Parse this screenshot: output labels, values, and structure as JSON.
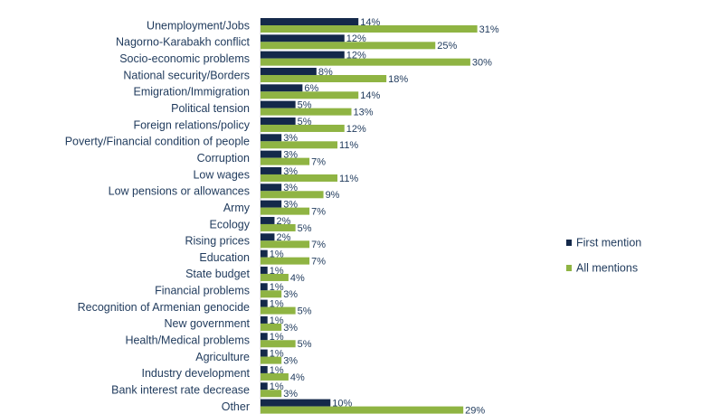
{
  "chart_data": {
    "type": "bar",
    "orientation": "horizontal",
    "categories": [
      "Unemployment/Jobs",
      "Nagorno-Karabakh conflict",
      "Socio-economic problems",
      "National security/Borders",
      "Emigration/Immigration",
      "Political tension",
      "Foreign relations/policy",
      "Poverty/Financial condition of people",
      "Corruption",
      "Low wages",
      "Low pensions or allowances",
      "Army",
      "Ecology",
      "Rising prices",
      "Education",
      "State budget",
      "Financial problems",
      "Recognition of Armenian genocide",
      "New government",
      "Health/Medical problems",
      "Agriculture",
      "Industry development",
      "Bank interest rate decrease",
      "Other"
    ],
    "series": [
      {
        "name": "First mention",
        "color": "#14294a",
        "values": [
          14,
          12,
          12,
          8,
          6,
          5,
          5,
          3,
          3,
          3,
          3,
          3,
          2,
          2,
          1,
          1,
          1,
          1,
          1,
          1,
          1,
          1,
          1,
          10
        ],
        "labels": [
          "14%",
          "12%",
          "12%",
          "8%",
          "6%",
          "5%",
          "5%",
          "3%",
          "3%",
          "3%",
          "3%",
          "3%",
          "2%",
          "2%",
          "1%",
          "1%",
          "1%",
          "1%",
          "1%",
          "1%",
          "1%",
          "1%",
          "1%",
          "10%"
        ]
      },
      {
        "name": "All mentions",
        "color": "#8fb443",
        "values": [
          31,
          25,
          30,
          18,
          14,
          13,
          12,
          11,
          7,
          11,
          9,
          7,
          5,
          7,
          7,
          4,
          3,
          5,
          3,
          5,
          3,
          4,
          3,
          29
        ],
        "labels": [
          "31%",
          "25%",
          "30%",
          "18%",
          "14%",
          "13%",
          "12%",
          "11%",
          "7%",
          "11%",
          "9%",
          "7%",
          "5%",
          "7%",
          "7%",
          "4%",
          "3%",
          "5%",
          "3%",
          "5%",
          "3%",
          "4%",
          "3%",
          "29%"
        ]
      }
    ],
    "xlim": [
      0,
      35
    ],
    "legend": "right"
  }
}
